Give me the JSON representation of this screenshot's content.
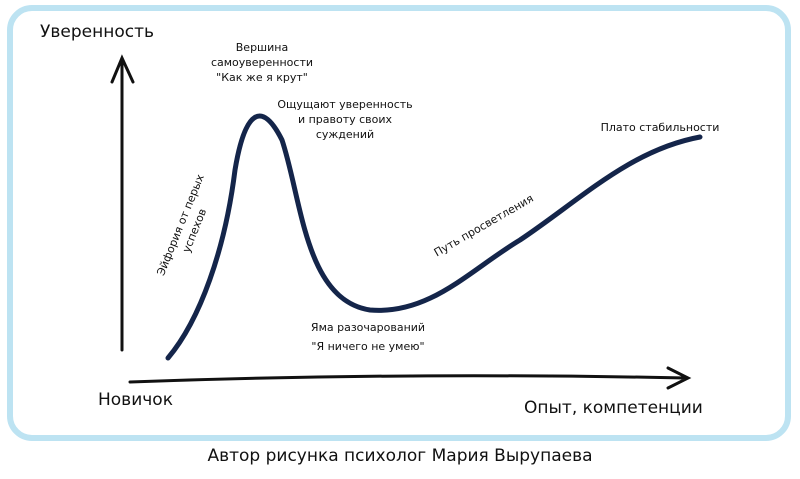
{
  "diagram": {
    "y_axis_label": "Уверенность",
    "x_axis_start_label": "Новичок",
    "x_axis_end_label": "Опыт, компетенции",
    "annotations": {
      "peak": [
        "Вершина",
        "самоуверенности",
        "\"Как же я крут\""
      ],
      "confident": [
        "Ощущают уверенность",
        "и правоту своих",
        "суждений"
      ],
      "euphoria": [
        "Эйфория от перых",
        "успехов"
      ],
      "valley": [
        "Яма разочарований",
        "\"Я ничего не умею\""
      ],
      "enlightenment": [
        "Путь просветления"
      ],
      "plateau": [
        "Плато стабильности"
      ]
    }
  },
  "caption": "Автор рисунка психолог Мария Вырупаева"
}
